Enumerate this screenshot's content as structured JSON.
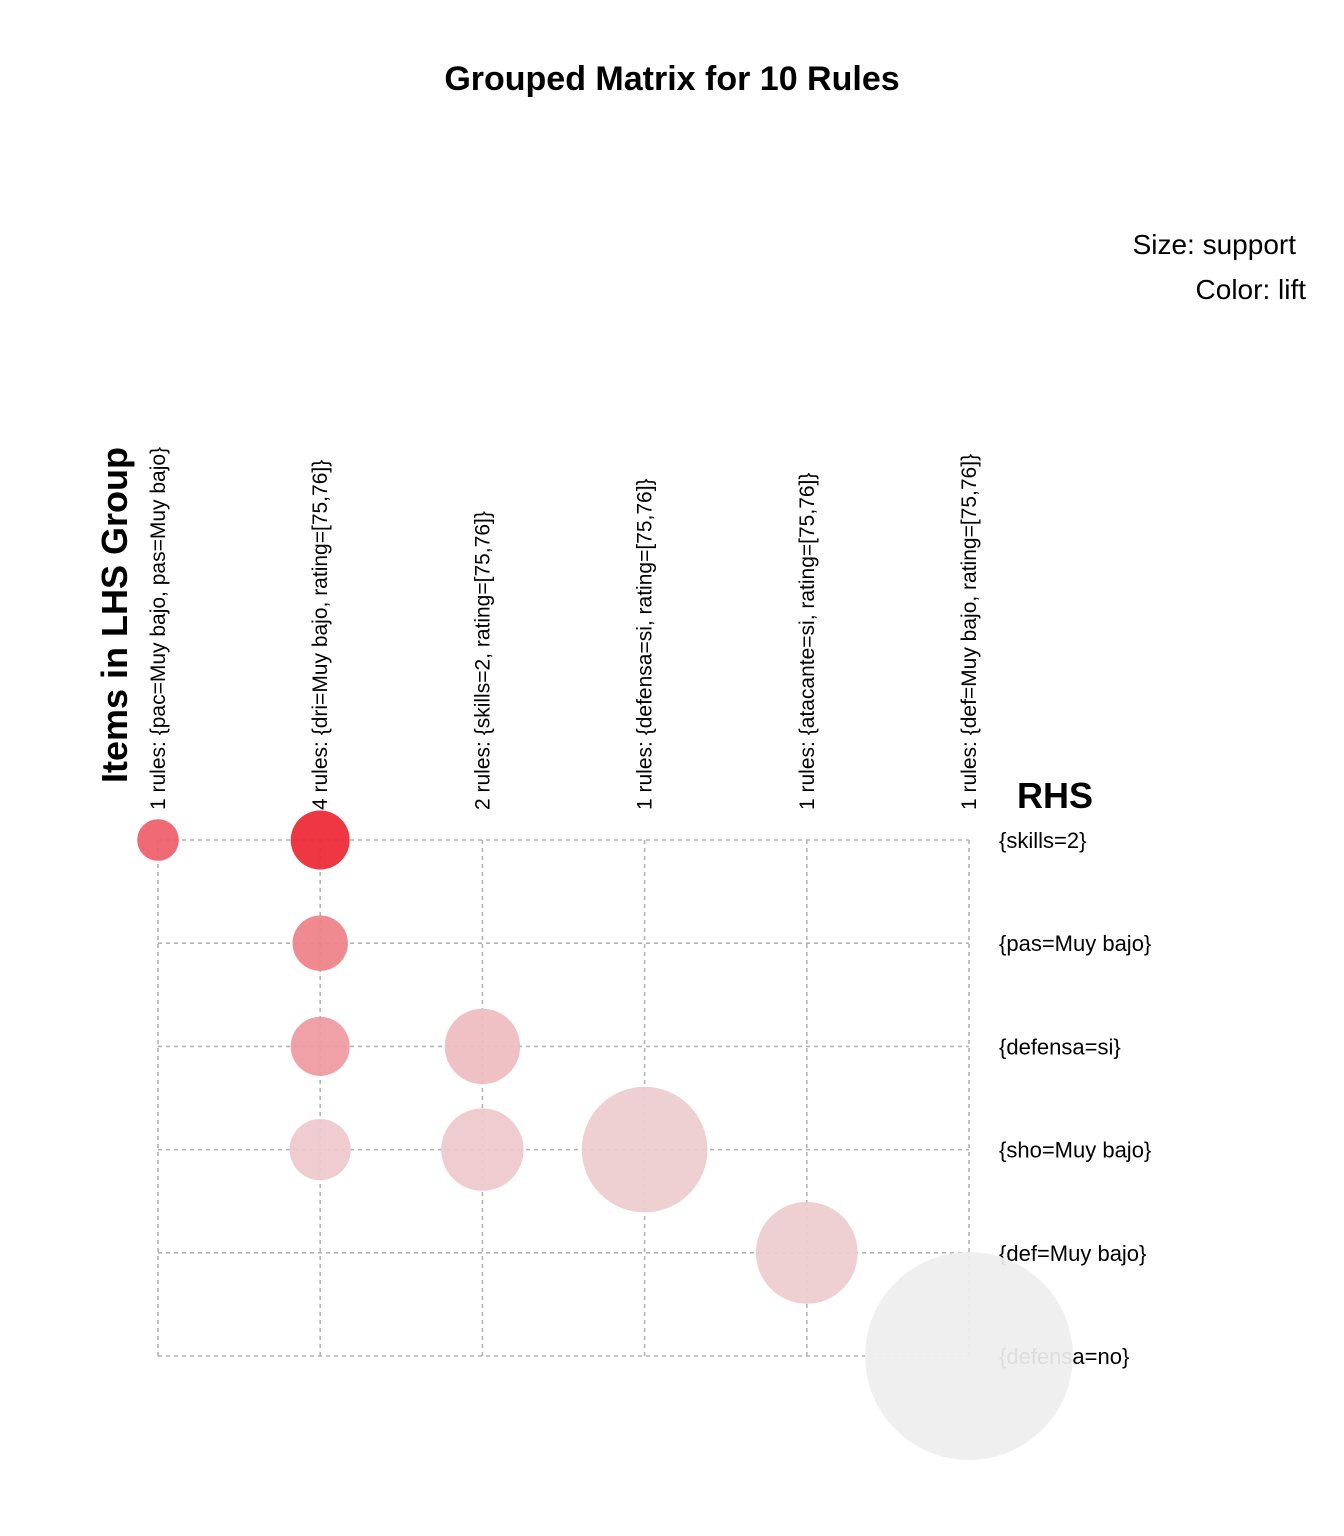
{
  "chart_data": {
    "type": "grouped_matrix",
    "title": "Grouped Matrix for 10 Rules",
    "legend": {
      "size": "Size: support",
      "color": "Color: lift"
    },
    "xlabel": "Items in LHS Group",
    "ylabel": "RHS",
    "lhs_groups": [
      "1 rules: {pac=Muy bajo, pas=Muy bajo}",
      "4 rules: {dri=Muy bajo, rating=[75,76]}",
      "2 rules: {skills=2, rating=[75,76]}",
      "1 rules: {defensa=si, rating=[75,76]}",
      "1 rules: {atacante=si, rating=[75,76]}",
      "1 rules: {def=Muy bajo, rating=[75,76]}"
    ],
    "rhs_items": [
      "{skills=2}",
      "{pas=Muy bajo}",
      "{defensa=si}",
      "{sho=Muy bajo}",
      "{def=Muy bajo}",
      "{defensa=no}"
    ],
    "color_scale": {
      "low": "#eeeeee",
      "high": "#ee1c2b"
    },
    "points": [
      {
        "lhs": 0,
        "rhs": 0,
        "support": 0.0047,
        "lift_level": 0.68
      },
      {
        "lhs": 1,
        "rhs": 0,
        "support": 0.0095,
        "lift_level": 0.95
      },
      {
        "lhs": 1,
        "rhs": 1,
        "support": 0.0084,
        "lift_level": 0.52
      },
      {
        "lhs": 1,
        "rhs": 2,
        "support": 0.0095,
        "lift_level": 0.4
      },
      {
        "lhs": 1,
        "rhs": 3,
        "support": 0.0102,
        "lift_level": 0.18
      },
      {
        "lhs": 2,
        "rhs": 2,
        "support": 0.0155,
        "lift_level": 0.24
      },
      {
        "lhs": 2,
        "rhs": 3,
        "support": 0.0185,
        "lift_level": 0.18
      },
      {
        "lhs": 3,
        "rhs": 3,
        "support": 0.043,
        "lift_level": 0.16
      },
      {
        "lhs": 4,
        "rhs": 4,
        "support": 0.0283,
        "lift_level": 0.16
      },
      {
        "lhs": 5,
        "rhs": 5,
        "support": 0.118,
        "lift_level": 0.0
      }
    ]
  }
}
